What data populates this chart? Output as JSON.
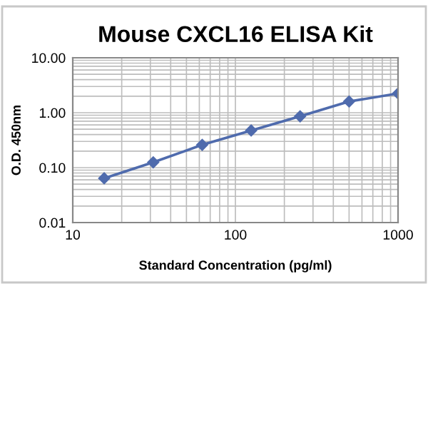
{
  "chart_data": {
    "type": "line",
    "title": "Mouse CXCL16 ELISA Kit",
    "xlabel": "Standard Concentration (pg/ml)",
    "ylabel": "O.D. 450nm",
    "x": [
      15.6,
      31.25,
      62.5,
      125,
      250,
      500,
      1000
    ],
    "series": [
      {
        "color": "#4f6bad",
        "values": [
          0.064,
          0.125,
          0.26,
          0.475,
          0.86,
          1.6,
          2.24
        ]
      }
    ],
    "log": "xy",
    "xlim": [
      10,
      1000
    ],
    "ylim": [
      0.01,
      10
    ],
    "xticks": [
      10,
      100,
      1000
    ],
    "yticks": [
      {
        "value": 0.01,
        "label": "0.01"
      },
      {
        "value": 0.1,
        "label": "0.10"
      },
      {
        "value": 1,
        "label": "1.00"
      },
      {
        "value": 10,
        "label": "10.00"
      }
    ],
    "grid": true,
    "marker": "diamond",
    "line_style": "solid"
  }
}
